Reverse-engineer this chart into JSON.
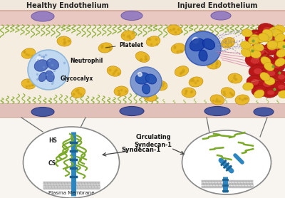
{
  "title_left": "Healthy Endothelium",
  "title_right": "Injured Endothelium",
  "label_platelet": "Platelet",
  "label_neutrophil": "Neutrophil",
  "label_glycocalyx": "Glycocalyx",
  "label_syndecan": "Syndecan-1",
  "label_circulating": "Circulating\nSyndecan-1",
  "label_hs": "HS",
  "label_cs": "CS",
  "label_plasma": "Plasma Membrane",
  "bg_outer": "#f0e8dc",
  "bg_vessel_interior": "#f5ede0",
  "bg_endothelium_top": "#e8cdc8",
  "bg_endothelium_bot": "#ddc8c0",
  "bg_lower": "#f8f5f0",
  "color_nucleus_purple_top": "#9b87c0",
  "color_nucleus_blue_bot": "#4a5a90",
  "color_platelet_fill": "#e8b830",
  "color_platelet_edge": "#c89010",
  "color_neutrophil_outer": "#b8d0e8",
  "color_neutrophil_nucleus": "#3a60b0",
  "color_monocyte_outer": "#6888c0",
  "color_monocyte_nucleus": "#1a3888",
  "color_red_cell": "#b82020",
  "color_rbc_inner": "#d04040",
  "color_glycocalyx": "#7a9f30",
  "color_syndecan_blue": "#2e86c1",
  "color_membrane_gray": "#b8b8b8",
  "color_fibrin": "#9090b8",
  "figwidth": 4.0,
  "figheight": 2.78,
  "dpi": 100
}
